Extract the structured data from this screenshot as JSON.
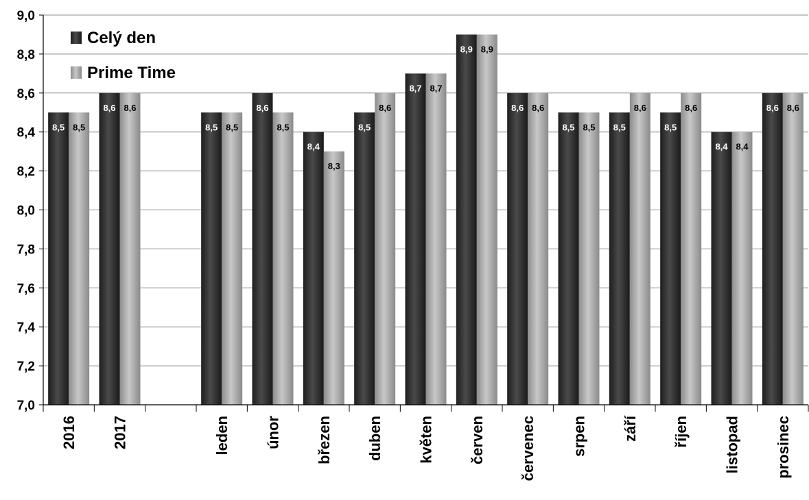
{
  "chart_data": {
    "type": "bar",
    "categories": [
      "2016",
      "2017",
      "",
      "leden",
      "únor",
      "březen",
      "duben",
      "květen",
      "červen",
      "červenec",
      "srpen",
      "září",
      "říjen",
      "listopad",
      "prosinec"
    ],
    "series": [
      {
        "name": "Celý den",
        "values": [
          8.5,
          8.6,
          null,
          8.5,
          8.6,
          8.4,
          8.5,
          8.7,
          8.9,
          8.6,
          8.5,
          8.5,
          8.5,
          8.4,
          8.6
        ],
        "labels": [
          "8,5",
          "8,6",
          "",
          "8,5",
          "8,6",
          "8,4",
          "8,5",
          "8,7",
          "8,9",
          "8,6",
          "8,5",
          "8,5",
          "8,5",
          "8,4",
          "8,6"
        ],
        "color": "#2e2e2e"
      },
      {
        "name": "Prime Time",
        "values": [
          8.5,
          8.6,
          null,
          8.5,
          8.5,
          8.3,
          8.6,
          8.7,
          8.9,
          8.6,
          8.5,
          8.6,
          8.6,
          8.4,
          8.6
        ],
        "labels": [
          "8,5",
          "8,6",
          "",
          "8,5",
          "8,5",
          "8,3",
          "8,6",
          "8,7",
          "8,9",
          "8,6",
          "8,5",
          "8,6",
          "8,6",
          "8,4",
          "8,6"
        ],
        "color": "#a6a6a6"
      }
    ],
    "ylim": [
      7.0,
      9.0
    ],
    "yticks": [
      "7,0",
      "7,2",
      "7,4",
      "7,6",
      "7,8",
      "8,0",
      "8,2",
      "8,4",
      "8,6",
      "8,8",
      "9,0"
    ],
    "grid": true,
    "legend_position": "top-left"
  }
}
